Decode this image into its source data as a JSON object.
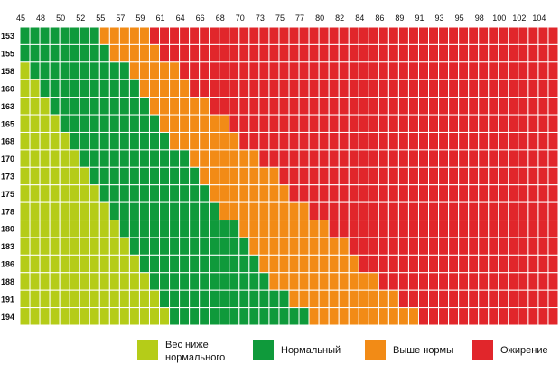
{
  "chart_data": {
    "type": "heatmap",
    "title": "",
    "x": [
      45,
      48,
      50,
      52,
      55,
      57,
      59,
      61,
      64,
      66,
      68,
      70,
      73,
      75,
      77,
      80,
      82,
      84,
      86,
      89,
      91,
      93,
      95,
      98,
      100,
      102,
      104
    ],
    "y": [
      153,
      155,
      158,
      160,
      163,
      165,
      168,
      170,
      173,
      175,
      178,
      180,
      183,
      186,
      188,
      191,
      194
    ],
    "cells_per_tick": 2,
    "categories": [
      {
        "id": "under",
        "label": [
          "Вес ниже",
          "нормального"
        ],
        "color": "#b5cc18"
      },
      {
        "id": "normal",
        "label": [
          "Нормальный"
        ],
        "color": "#0f9a3b"
      },
      {
        "id": "over",
        "label": [
          "Выше нормы"
        ],
        "color": "#f28b16"
      },
      {
        "id": "obese",
        "label": [
          "Ожирение"
        ],
        "color": "#e1262b"
      }
    ],
    "row_boundaries": {
      "columns": [
        "under_end",
        "normal_end",
        "over_end"
      ],
      "rows": [
        [
          0,
          8,
          13
        ],
        [
          0,
          9,
          14
        ],
        [
          1,
          11,
          16
        ],
        [
          2,
          12,
          17
        ],
        [
          3,
          13,
          19
        ],
        [
          4,
          14,
          21
        ],
        [
          5,
          15,
          22
        ],
        [
          6,
          17,
          24
        ],
        [
          7,
          18,
          26
        ],
        [
          8,
          19,
          27
        ],
        [
          9,
          20,
          29
        ],
        [
          10,
          22,
          31
        ],
        [
          11,
          23,
          33
        ],
        [
          12,
          24,
          34
        ],
        [
          13,
          25,
          36
        ],
        [
          14,
          27,
          38
        ],
        [
          15,
          29,
          40
        ]
      ]
    }
  }
}
